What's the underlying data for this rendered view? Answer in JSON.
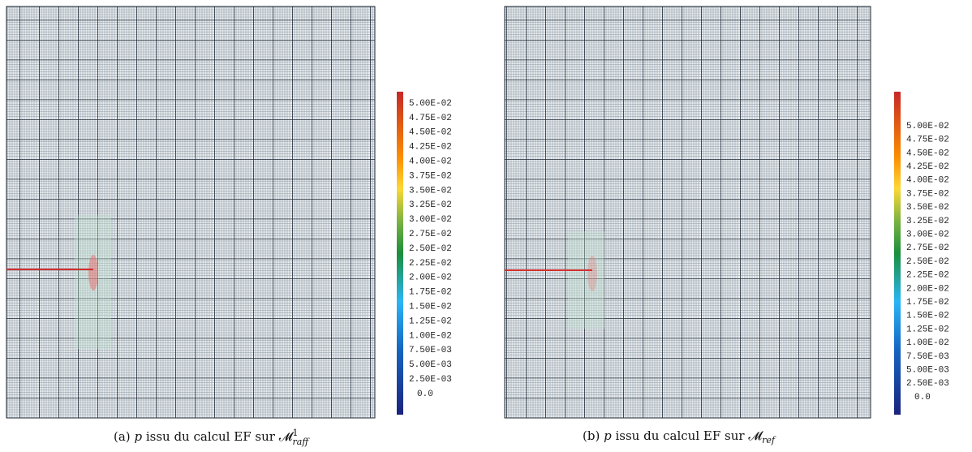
{
  "panels": [
    {
      "colorbar": {
        "labels": [
          "5.00E-02",
          "4.75E-02",
          "4.50E-02",
          "4.25E-02",
          "4.00E-02",
          "3.75E-02",
          "3.50E-02",
          "3.25E-02",
          "3.00E-02",
          "2.75E-02",
          "2.50E-02",
          "2.25E-02",
          "2.00E-02",
          "1.75E-02",
          "1.50E-02",
          "1.25E-02",
          "1.00E-02",
          "7.50E-03",
          "5.00E-03",
          "2.50E-03",
          "0.0"
        ]
      },
      "caption": {
        "label": "(a)",
        "variable": "p",
        "text": "issu du calcul EF sur",
        "symbol": "𝓜",
        "sup": "1",
        "sub": "raff"
      }
    },
    {
      "colorbar": {
        "labels": [
          "5.00E-02",
          "4.75E-02",
          "4.50E-02",
          "4.25E-02",
          "4.00E-02",
          "3.75E-02",
          "3.50E-02",
          "3.25E-02",
          "3.00E-02",
          "2.75E-02",
          "2.50E-02",
          "2.25E-02",
          "2.00E-02",
          "1.75E-02",
          "1.50E-02",
          "1.25E-02",
          "1.00E-02",
          "7.50E-03",
          "5.00E-03",
          "2.50E-03",
          "0.0"
        ]
      },
      "caption": {
        "label": "(b)",
        "variable": "p",
        "text": "issu du calcul EF sur",
        "symbol": "𝓜",
        "sub": "ref"
      }
    }
  ]
}
